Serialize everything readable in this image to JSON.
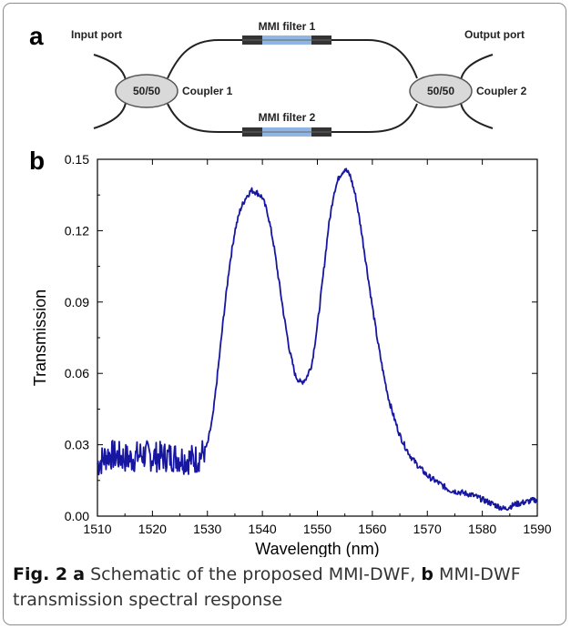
{
  "schematic": {
    "panel_label": "a",
    "input_port": "Input port",
    "output_port": "Output port",
    "coupler1_ratio": "50/50",
    "coupler1_label": "Coupler 1",
    "coupler2_ratio": "50/50",
    "coupler2_label": "Coupler 2",
    "filter1_label": "MMI filter 1",
    "filter2_label": "MMI filter 2",
    "colors": {
      "filter": "#8fb6e3",
      "coupler": "#d9d9d9",
      "waveguide": "#222222"
    }
  },
  "chart_data": {
    "panel_label": "b",
    "type": "line",
    "xlabel": "Wavelength (nm)",
    "ylabel": "Transmission",
    "xlim": [
      1510,
      1590
    ],
    "ylim": [
      0,
      0.15
    ],
    "x_ticks": [
      "1510",
      "1520",
      "1530",
      "1540",
      "1550",
      "1560",
      "1570",
      "1580",
      "1590"
    ],
    "y_ticks": [
      "0.00",
      "0.03",
      "0.06",
      "0.09",
      "0.12",
      "0.15"
    ],
    "grid": false,
    "line_color": "#1616a0",
    "series": [
      {
        "x": [
          1510,
          1512,
          1514,
          1516,
          1518,
          1520,
          1522,
          1524,
          1526,
          1528,
          1529,
          1530,
          1531,
          1532,
          1533,
          1534,
          1535,
          1536,
          1537,
          1538,
          1539,
          1540,
          1541,
          1542,
          1543,
          1544,
          1545,
          1546,
          1547,
          1548,
          1549,
          1550,
          1551,
          1552,
          1553,
          1554,
          1555,
          1556,
          1557,
          1558,
          1559,
          1560,
          1561,
          1562,
          1563,
          1564,
          1565,
          1566,
          1567,
          1568,
          1570,
          1572,
          1574,
          1576,
          1578,
          1580,
          1582,
          1584,
          1586,
          1588,
          1590
        ],
        "values": [
          0.022,
          0.026,
          0.025,
          0.024,
          0.026,
          0.025,
          0.025,
          0.025,
          0.024,
          0.024,
          0.026,
          0.03,
          0.042,
          0.063,
          0.085,
          0.105,
          0.12,
          0.129,
          0.134,
          0.137,
          0.136,
          0.134,
          0.127,
          0.115,
          0.099,
          0.083,
          0.069,
          0.059,
          0.056,
          0.058,
          0.064,
          0.08,
          0.1,
          0.121,
          0.136,
          0.143,
          0.146,
          0.143,
          0.134,
          0.12,
          0.104,
          0.088,
          0.073,
          0.06,
          0.049,
          0.041,
          0.034,
          0.029,
          0.025,
          0.022,
          0.017,
          0.014,
          0.011,
          0.01,
          0.009,
          0.007,
          0.005,
          0.003,
          0.005,
          0.006,
          0.007
        ]
      }
    ]
  },
  "caption": {
    "fig_label": "Fig. 2",
    "part_a_label": "a",
    "part_a_text": "Schematic of the proposed MMI-DWF,",
    "part_b_label": "b",
    "part_b_text": "MMI-DWF transmission spectral response"
  }
}
